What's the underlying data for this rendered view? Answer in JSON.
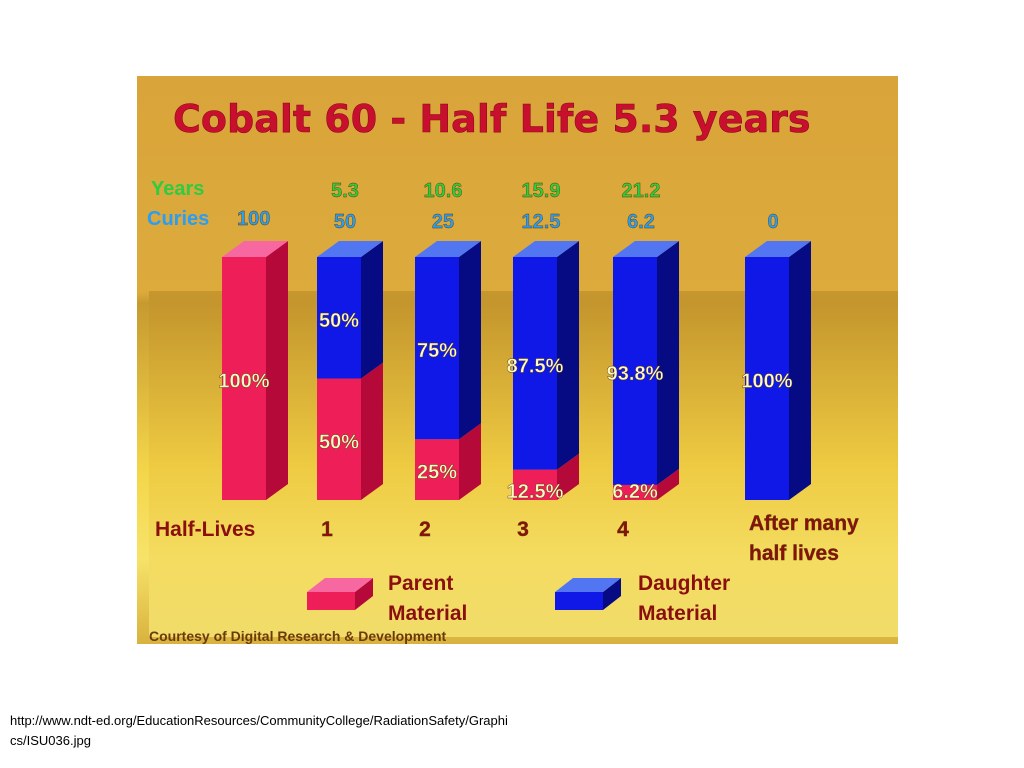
{
  "chart_data": {
    "type": "bar",
    "stacked": true,
    "title": "Cobalt 60 - Half Life 5.3 years",
    "header_labels": {
      "years": "Years",
      "curies": "Curies"
    },
    "categories": [
      "",
      "1",
      "2",
      "3",
      "4",
      "After many half lives"
    ],
    "category_label_lines": [
      [
        ""
      ],
      [
        "1"
      ],
      [
        "2"
      ],
      [
        "3"
      ],
      [
        "4"
      ],
      [
        "After many",
        "half lives"
      ]
    ],
    "xlabel": "Half-Lives",
    "years": [
      "",
      "5.3",
      "10.6",
      "15.9",
      "21.2",
      ""
    ],
    "curies": [
      "100",
      "50",
      "25",
      "12.5",
      "6.2",
      "0"
    ],
    "series": [
      {
        "name": "Parent Material",
        "name_lines": [
          "Parent",
          "Material"
        ],
        "values": [
          100,
          50,
          25,
          12.5,
          6.2,
          0
        ],
        "labels": [
          "100%",
          "50%",
          "25%",
          "12.5%",
          "6.2%",
          ""
        ]
      },
      {
        "name": "Daughter Material",
        "name_lines": [
          "Daughter",
          "Material"
        ],
        "values": [
          0,
          50,
          75,
          87.5,
          93.8,
          100
        ],
        "labels": [
          "",
          "50%",
          "75%",
          "87.5%",
          "93.8%",
          "100%"
        ]
      }
    ],
    "ylim": [
      0,
      100
    ],
    "grid": false,
    "legend": "bottom",
    "credit": "Courtesy of Digital Research & Development",
    "colors": {
      "parent_front": "#ee1f58",
      "parent_side": "#b5093a",
      "parent_top": "#f768a0",
      "daughter_front": "#0f18e6",
      "daughter_side": "#060b84",
      "daughter_top": "#5276f2",
      "title": "#c8102e",
      "years_text": "#2ecc40",
      "curies_text": "#2a9df4",
      "label_text": "#fff9c8",
      "axis_text": "#8a1010"
    }
  },
  "source_url": "http://www.ndt-ed.org/EducationResources/CommunityCollege/RadiationSafety/Graphics/ISU036.jpg"
}
